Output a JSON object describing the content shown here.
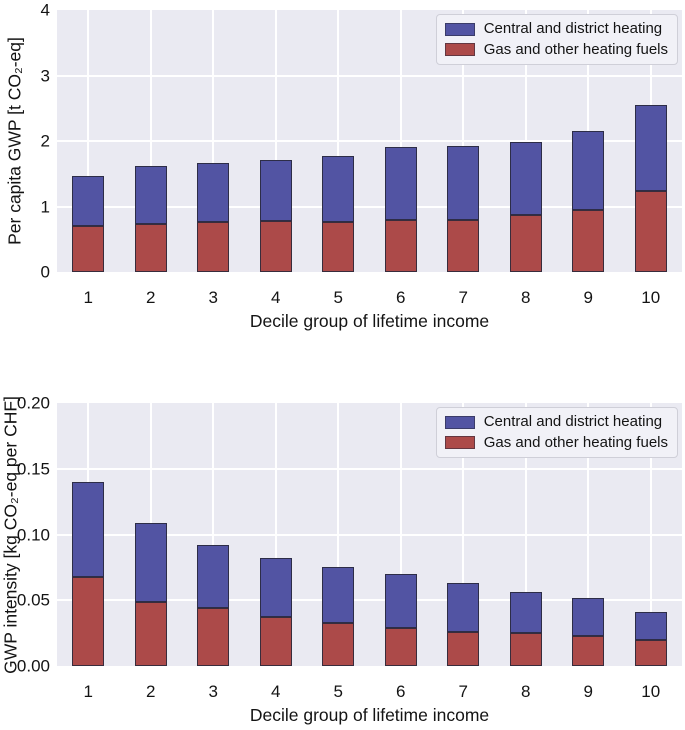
{
  "figure": {
    "background": "#ffffff",
    "plot_background": "#eaeaf2",
    "gridline_color": "#ffffff",
    "bar_edge_color": "rgba(40,40,58,0.88)"
  },
  "chart_data": [
    {
      "type": "bar",
      "stacked": true,
      "title": "",
      "ylabel": "Per capita GWP [t CO₂-eq]",
      "xlabel": "Decile group of lifetime income",
      "categories": [
        "1",
        "2",
        "3",
        "4",
        "5",
        "6",
        "7",
        "8",
        "9",
        "10"
      ],
      "ylim": [
        0,
        4
      ],
      "yticks": [
        {
          "label": "0",
          "value": 0
        },
        {
          "label": "1",
          "value": 1
        },
        {
          "label": "2",
          "value": 2
        },
        {
          "label": "3",
          "value": 3
        },
        {
          "label": "4",
          "value": 4
        }
      ],
      "grid": true,
      "legend_position": "upper right",
      "series": [
        {
          "name": "Gas and other heating fuels",
          "color": "#ac4a49",
          "values": [
            0.7,
            0.73,
            0.77,
            0.78,
            0.77,
            0.79,
            0.79,
            0.87,
            0.95,
            1.24
          ]
        },
        {
          "name": "Central and district heating",
          "color": "#5254a3",
          "values": [
            0.76,
            0.89,
            0.9,
            0.93,
            1.0,
            1.12,
            1.13,
            1.11,
            1.21,
            1.31
          ]
        }
      ],
      "totals": [
        1.46,
        1.62,
        1.67,
        1.71,
        1.77,
        1.91,
        1.92,
        1.98,
        2.16,
        2.55
      ],
      "legend": [
        {
          "label": "Central and district heating",
          "color": "#5254a3"
        },
        {
          "label": "Gas and other heating fuels",
          "color": "#ac4a49"
        }
      ]
    },
    {
      "type": "bar",
      "stacked": true,
      "title": "",
      "ylabel": "GWP intensity [kg CO₂-eq per CHF]",
      "xlabel": "Decile group of lifetime income",
      "categories": [
        "1",
        "2",
        "3",
        "4",
        "5",
        "6",
        "7",
        "8",
        "9",
        "10"
      ],
      "ylim": [
        0,
        0.2
      ],
      "yticks": [
        {
          "label": "0.00",
          "value": 0
        },
        {
          "label": "0.05",
          "value": 0.05
        },
        {
          "label": "0.10",
          "value": 0.1
        },
        {
          "label": "0.15",
          "value": 0.15
        },
        {
          "label": "0.20",
          "value": 0.2
        }
      ],
      "grid": true,
      "legend_position": "upper right",
      "series": [
        {
          "name": "Gas and other heating fuels",
          "color": "#ac4a49",
          "values": [
            0.068,
            0.049,
            0.044,
            0.037,
            0.033,
            0.029,
            0.026,
            0.025,
            0.023,
            0.02
          ]
        },
        {
          "name": "Central and district heating",
          "color": "#5254a3",
          "values": [
            0.072,
            0.06,
            0.048,
            0.045,
            0.042,
            0.041,
            0.037,
            0.031,
            0.029,
            0.021
          ]
        }
      ],
      "totals": [
        0.14,
        0.109,
        0.092,
        0.082,
        0.075,
        0.07,
        0.063,
        0.056,
        0.052,
        0.041
      ],
      "legend": [
        {
          "label": "Central and district heating",
          "color": "#5254a3"
        },
        {
          "label": "Gas and other heating fuels",
          "color": "#ac4a49"
        }
      ]
    }
  ]
}
